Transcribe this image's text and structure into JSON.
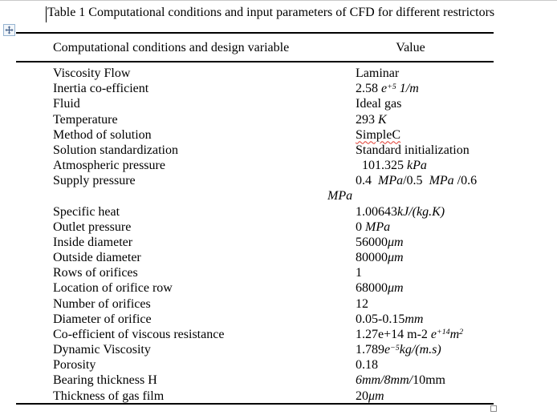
{
  "caption": "Table 1 Computational conditions and input parameters of CFD for different restrictors",
  "icons": {
    "move_handle": "four-way-arrow",
    "resize_handle": "small-open-square"
  },
  "colors": {
    "misspell_underline": "#e0392e",
    "handle_border": "#95b3d0",
    "handle_arrow": "#44618c"
  },
  "table": {
    "header": {
      "col1": "Computational conditions and design variable",
      "col2": "Value"
    },
    "rows": [
      {
        "label": "Viscosity Flow",
        "value": [
          {
            "t": "Laminar"
          }
        ]
      },
      {
        "label": "Inertia co-efficient",
        "value": [
          {
            "t": "2.58 "
          },
          {
            "t": "e",
            "i": true
          },
          {
            "t": "+5",
            "sup": true,
            "i": true
          },
          {
            "t": " 1/m",
            "i": true
          }
        ]
      },
      {
        "label": "Fluid",
        "value": [
          {
            "t": "Ideal gas"
          }
        ]
      },
      {
        "label": "Temperature",
        "value": [
          {
            "t": "293 "
          },
          {
            "t": "K",
            "i": true
          }
        ]
      },
      {
        "label": "Method of solution",
        "value": [
          {
            "t": "SimpleC",
            "u": true
          }
        ]
      },
      {
        "label": "Solution standardization",
        "value": [
          {
            "t": "Standard initialization"
          }
        ]
      },
      {
        "label": "Atmospheric pressure",
        "value": [
          {
            "t": "  101.325 "
          },
          {
            "t": "kPa",
            "i": true
          }
        ]
      },
      {
        "label": "Supply pressure",
        "lines": 2,
        "value": [
          {
            "t": "0.4  "
          },
          {
            "t": "MPa",
            "i": true
          },
          {
            "t": "/0.5  "
          },
          {
            "t": "MPa",
            "i": true
          },
          {
            "t": " /0.6 "
          },
          {
            "br": true
          },
          {
            "t": "MPa",
            "i": true
          }
        ]
      },
      {
        "label": "Specific heat",
        "value": [
          {
            "t": "1.00643"
          },
          {
            "t": "kJ/(kg.K)",
            "i": true
          }
        ]
      },
      {
        "label": "Outlet pressure",
        "value": [
          {
            "t": "0 "
          },
          {
            "t": "MPa",
            "i": true
          }
        ]
      },
      {
        "label": "Inside diameter",
        "value": [
          {
            "t": "56000"
          },
          {
            "t": "μm",
            "i": true
          }
        ]
      },
      {
        "label": "Outside diameter",
        "value": [
          {
            "t": "80000"
          },
          {
            "t": "μm",
            "i": true
          }
        ]
      },
      {
        "label": "Rows of orifices",
        "value": [
          {
            "t": "1"
          }
        ]
      },
      {
        "label": "Location of orifice row",
        "value": [
          {
            "t": "68000"
          },
          {
            "t": "μm",
            "i": true
          }
        ]
      },
      {
        "label": "Number of orifices",
        "value": [
          {
            "t": "12"
          }
        ]
      },
      {
        "label": "Diameter of orifice",
        "value": [
          {
            "t": "0.05-0.15"
          },
          {
            "t": "mm",
            "i": true
          }
        ]
      },
      {
        "label": "Co-efficient of viscous resistance",
        "value": [
          {
            "t": "1.27e+14 m-2 "
          },
          {
            "t": "e",
            "i": true
          },
          {
            "t": "+14",
            "sup": true,
            "i": true
          },
          {
            "t": "m",
            "i": true
          },
          {
            "t": "2",
            "sup": true,
            "i": true
          }
        ]
      },
      {
        "label": "Dynamic Viscosity",
        "value": [
          {
            "t": "1.789"
          },
          {
            "t": "e",
            "i": true
          },
          {
            "t": "−5",
            "sup": true,
            "i": true
          },
          {
            "t": "kg/(m.s)",
            "i": true
          }
        ]
      },
      {
        "label": "Porosity",
        "value": [
          {
            "t": "0.18"
          }
        ]
      },
      {
        "label": "Bearing thickness H",
        "value": [
          {
            "t": "6mm/8mm/",
            "i": true
          },
          {
            "t": "10mm"
          }
        ]
      },
      {
        "label": "Thickness of gas film",
        "value": [
          {
            "t": "20"
          },
          {
            "t": "μm",
            "i": true
          }
        ]
      }
    ]
  }
}
